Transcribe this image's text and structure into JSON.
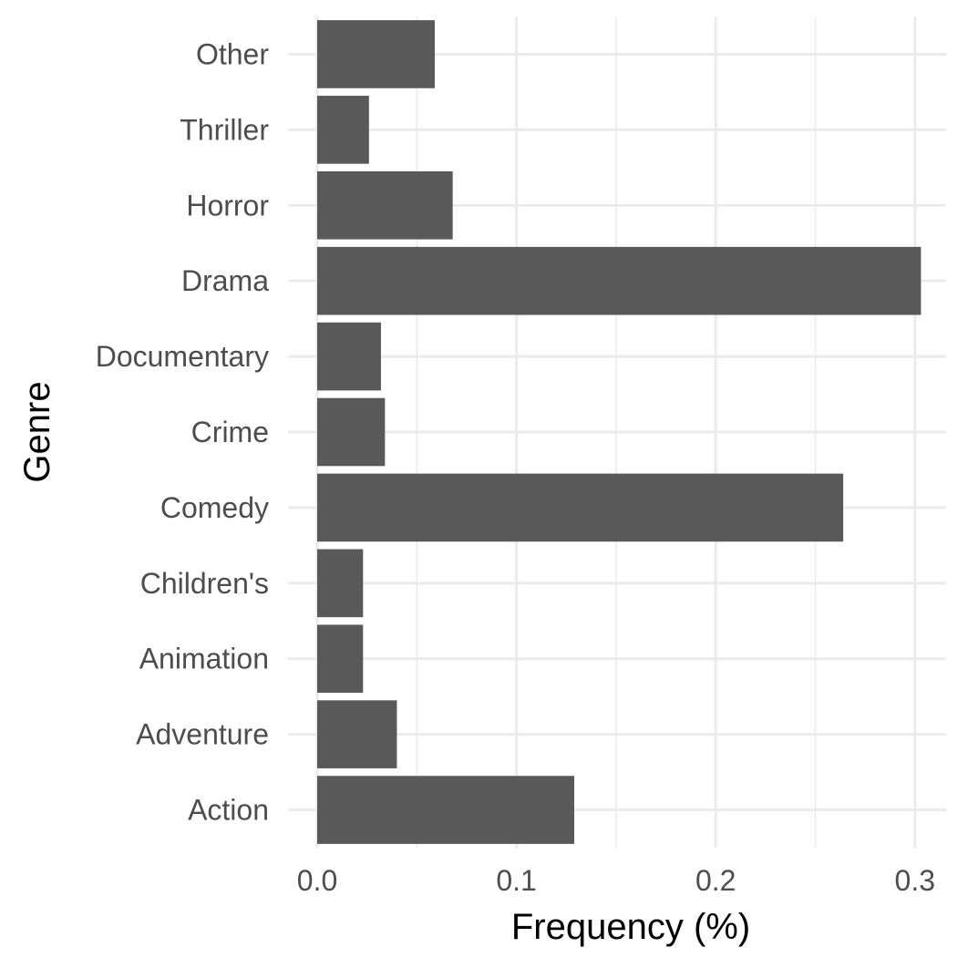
{
  "chart_data": {
    "type": "bar",
    "orientation": "horizontal",
    "title": "",
    "xlabel": "Frequency (%)",
    "ylabel": "Genre",
    "categories": [
      "Action",
      "Adventure",
      "Animation",
      "Children's",
      "Comedy",
      "Crime",
      "Documentary",
      "Drama",
      "Horror",
      "Thriller",
      "Other"
    ],
    "values": [
      0.129,
      0.04,
      0.023,
      0.023,
      0.264,
      0.034,
      0.032,
      0.303,
      0.068,
      0.026,
      0.059
    ],
    "xlim": [
      0,
      0.305
    ],
    "x_ticks": [
      0,
      0.1,
      0.2,
      0.3
    ],
    "x_tick_labels": [
      "0.0",
      "0.1",
      "0.2",
      "0.3"
    ],
    "grid": true,
    "legend": "none",
    "colors": {
      "bar": "#595959",
      "grid": "#ebebeb",
      "tick_text": "#4d4d4d",
      "axis_title": "#000000"
    }
  }
}
